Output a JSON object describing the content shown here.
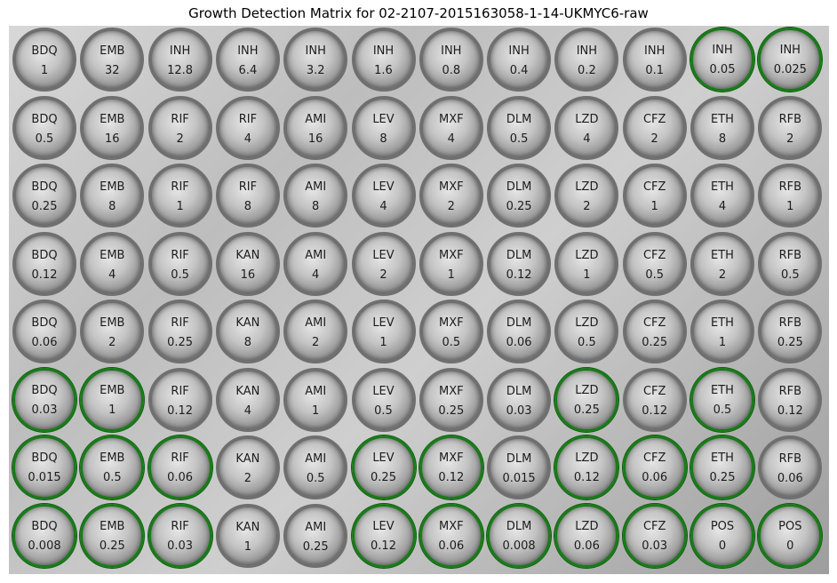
{
  "title": "Growth Detection Matrix for 02-2107-2015163058-1-14-UKMYC6-raw",
  "growth_color": "#1a7a1a",
  "wells": [
    [
      {
        "drug": "BDQ",
        "conc": "1",
        "growth": false
      },
      {
        "drug": "EMB",
        "conc": "32",
        "growth": false
      },
      {
        "drug": "INH",
        "conc": "12.8",
        "growth": false
      },
      {
        "drug": "INH",
        "conc": "6.4",
        "growth": false
      },
      {
        "drug": "INH",
        "conc": "3.2",
        "growth": false
      },
      {
        "drug": "INH",
        "conc": "1.6",
        "growth": false
      },
      {
        "drug": "INH",
        "conc": "0.8",
        "growth": false
      },
      {
        "drug": "INH",
        "conc": "0.4",
        "growth": false
      },
      {
        "drug": "INH",
        "conc": "0.2",
        "growth": false
      },
      {
        "drug": "INH",
        "conc": "0.1",
        "growth": false
      },
      {
        "drug": "INH",
        "conc": "0.05",
        "growth": true
      },
      {
        "drug": "INH",
        "conc": "0.025",
        "growth": true
      }
    ],
    [
      {
        "drug": "BDQ",
        "conc": "0.5",
        "growth": false
      },
      {
        "drug": "EMB",
        "conc": "16",
        "growth": false
      },
      {
        "drug": "RIF",
        "conc": "2",
        "growth": false
      },
      {
        "drug": "RIF",
        "conc": "4",
        "growth": false
      },
      {
        "drug": "AMI",
        "conc": "16",
        "growth": false
      },
      {
        "drug": "LEV",
        "conc": "8",
        "growth": false
      },
      {
        "drug": "MXF",
        "conc": "4",
        "growth": false
      },
      {
        "drug": "DLM",
        "conc": "0.5",
        "growth": false
      },
      {
        "drug": "LZD",
        "conc": "4",
        "growth": false
      },
      {
        "drug": "CFZ",
        "conc": "2",
        "growth": false
      },
      {
        "drug": "ETH",
        "conc": "8",
        "growth": false
      },
      {
        "drug": "RFB",
        "conc": "2",
        "growth": false
      }
    ],
    [
      {
        "drug": "BDQ",
        "conc": "0.25",
        "growth": false
      },
      {
        "drug": "EMB",
        "conc": "8",
        "growth": false
      },
      {
        "drug": "RIF",
        "conc": "1",
        "growth": false
      },
      {
        "drug": "RIF",
        "conc": "8",
        "growth": false
      },
      {
        "drug": "AMI",
        "conc": "8",
        "growth": false
      },
      {
        "drug": "LEV",
        "conc": "4",
        "growth": false
      },
      {
        "drug": "MXF",
        "conc": "2",
        "growth": false
      },
      {
        "drug": "DLM",
        "conc": "0.25",
        "growth": false
      },
      {
        "drug": "LZD",
        "conc": "2",
        "growth": false
      },
      {
        "drug": "CFZ",
        "conc": "1",
        "growth": false
      },
      {
        "drug": "ETH",
        "conc": "4",
        "growth": false
      },
      {
        "drug": "RFB",
        "conc": "1",
        "growth": false
      }
    ],
    [
      {
        "drug": "BDQ",
        "conc": "0.12",
        "growth": false
      },
      {
        "drug": "EMB",
        "conc": "4",
        "growth": false
      },
      {
        "drug": "RIF",
        "conc": "0.5",
        "growth": false
      },
      {
        "drug": "KAN",
        "conc": "16",
        "growth": false
      },
      {
        "drug": "AMI",
        "conc": "4",
        "growth": false
      },
      {
        "drug": "LEV",
        "conc": "2",
        "growth": false
      },
      {
        "drug": "MXF",
        "conc": "1",
        "growth": false
      },
      {
        "drug": "DLM",
        "conc": "0.12",
        "growth": false
      },
      {
        "drug": "LZD",
        "conc": "1",
        "growth": false
      },
      {
        "drug": "CFZ",
        "conc": "0.5",
        "growth": false
      },
      {
        "drug": "ETH",
        "conc": "2",
        "growth": false
      },
      {
        "drug": "RFB",
        "conc": "0.5",
        "growth": false
      }
    ],
    [
      {
        "drug": "BDQ",
        "conc": "0.06",
        "growth": false
      },
      {
        "drug": "EMB",
        "conc": "2",
        "growth": false
      },
      {
        "drug": "RIF",
        "conc": "0.25",
        "growth": false
      },
      {
        "drug": "KAN",
        "conc": "8",
        "growth": false
      },
      {
        "drug": "AMI",
        "conc": "2",
        "growth": false
      },
      {
        "drug": "LEV",
        "conc": "1",
        "growth": false
      },
      {
        "drug": "MXF",
        "conc": "0.5",
        "growth": false
      },
      {
        "drug": "DLM",
        "conc": "0.06",
        "growth": false
      },
      {
        "drug": "LZD",
        "conc": "0.5",
        "growth": false
      },
      {
        "drug": "CFZ",
        "conc": "0.25",
        "growth": false
      },
      {
        "drug": "ETH",
        "conc": "1",
        "growth": false
      },
      {
        "drug": "RFB",
        "conc": "0.25",
        "growth": false
      }
    ],
    [
      {
        "drug": "BDQ",
        "conc": "0.03",
        "growth": true
      },
      {
        "drug": "EMB",
        "conc": "1",
        "growth": true
      },
      {
        "drug": "RIF",
        "conc": "0.12",
        "growth": false
      },
      {
        "drug": "KAN",
        "conc": "4",
        "growth": false
      },
      {
        "drug": "AMI",
        "conc": "1",
        "growth": false
      },
      {
        "drug": "LEV",
        "conc": "0.5",
        "growth": false
      },
      {
        "drug": "MXF",
        "conc": "0.25",
        "growth": false
      },
      {
        "drug": "DLM",
        "conc": "0.03",
        "growth": false
      },
      {
        "drug": "LZD",
        "conc": "0.25",
        "growth": true
      },
      {
        "drug": "CFZ",
        "conc": "0.12",
        "growth": false
      },
      {
        "drug": "ETH",
        "conc": "0.5",
        "growth": true
      },
      {
        "drug": "RFB",
        "conc": "0.12",
        "growth": false
      }
    ],
    [
      {
        "drug": "BDQ",
        "conc": "0.015",
        "growth": true
      },
      {
        "drug": "EMB",
        "conc": "0.5",
        "growth": true
      },
      {
        "drug": "RIF",
        "conc": "0.06",
        "growth": true
      },
      {
        "drug": "KAN",
        "conc": "2",
        "growth": false
      },
      {
        "drug": "AMI",
        "conc": "0.5",
        "growth": false
      },
      {
        "drug": "LEV",
        "conc": "0.25",
        "growth": true
      },
      {
        "drug": "MXF",
        "conc": "0.12",
        "growth": true
      },
      {
        "drug": "DLM",
        "conc": "0.015",
        "growth": false
      },
      {
        "drug": "LZD",
        "conc": "0.12",
        "growth": true
      },
      {
        "drug": "CFZ",
        "conc": "0.06",
        "growth": true
      },
      {
        "drug": "ETH",
        "conc": "0.25",
        "growth": true
      },
      {
        "drug": "RFB",
        "conc": "0.06",
        "growth": false
      }
    ],
    [
      {
        "drug": "BDQ",
        "conc": "0.008",
        "growth": true
      },
      {
        "drug": "EMB",
        "conc": "0.25",
        "growth": true
      },
      {
        "drug": "RIF",
        "conc": "0.03",
        "growth": true
      },
      {
        "drug": "KAN",
        "conc": "1",
        "growth": false
      },
      {
        "drug": "AMI",
        "conc": "0.25",
        "growth": false
      },
      {
        "drug": "LEV",
        "conc": "0.12",
        "growth": true
      },
      {
        "drug": "MXF",
        "conc": "0.06",
        "growth": true
      },
      {
        "drug": "DLM",
        "conc": "0.008",
        "growth": true
      },
      {
        "drug": "LZD",
        "conc": "0.06",
        "growth": true
      },
      {
        "drug": "CFZ",
        "conc": "0.03",
        "growth": true
      },
      {
        "drug": "POS",
        "conc": "0",
        "growth": true
      },
      {
        "drug": "POS",
        "conc": "0",
        "growth": true
      }
    ]
  ]
}
